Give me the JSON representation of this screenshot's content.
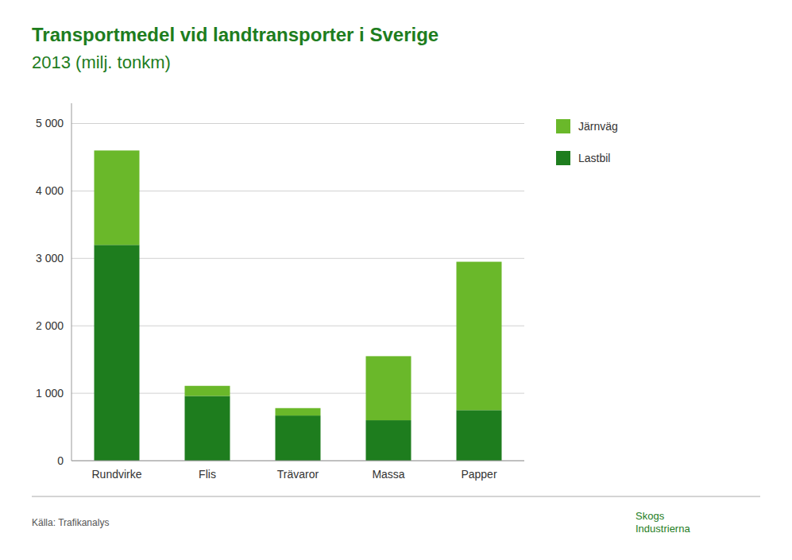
{
  "chart_data": {
    "type": "bar",
    "stacked": true,
    "title": "Transportmedel vid landtransporter i Sverige",
    "subtitle": "2013 (milj. tonkm)",
    "categories": [
      "Rundvirke",
      "Flis",
      "Trävaror",
      "Massa",
      "Papper"
    ],
    "series": [
      {
        "name": "Lastbil",
        "color": "#1e7d1e",
        "values": [
          3200,
          960,
          670,
          600,
          750
        ]
      },
      {
        "name": "Järnväg",
        "color": "#6ab82a",
        "values": [
          1400,
          150,
          110,
          950,
          2200
        ]
      }
    ],
    "ylim": [
      0,
      5300
    ],
    "yticks": [
      0,
      {
        "value": 1000,
        "label": "1 000"
      },
      {
        "value": 2000,
        "label": "2 000"
      },
      {
        "value": 3000,
        "label": "3 000"
      },
      {
        "value": 4000,
        "label": "4 000"
      },
      {
        "value": 5000,
        "label": "5 000"
      }
    ],
    "grid": true,
    "legend": "right",
    "annotations": [
      "Källa: Trafikanalys",
      "Skogs\nIndustrierna"
    ]
  }
}
